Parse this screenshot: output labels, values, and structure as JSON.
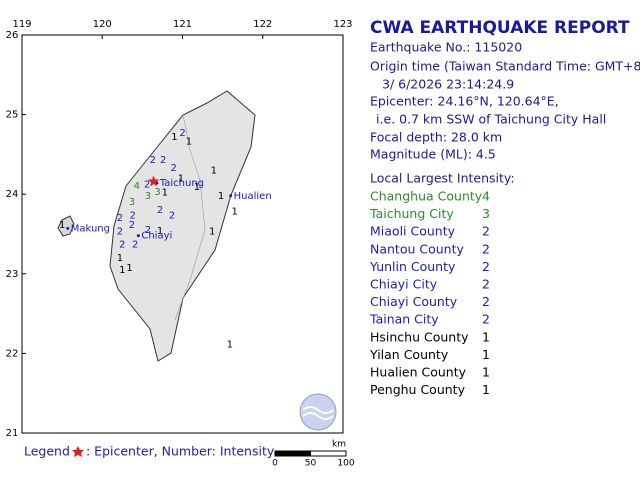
{
  "map": {
    "xlim": [
      119,
      123
    ],
    "ylim": [
      21,
      26
    ],
    "xticks": [
      119,
      120,
      121,
      122,
      123
    ],
    "yticks": [
      21,
      22,
      23,
      24,
      25,
      26
    ],
    "epicenter": {
      "lon": 120.64,
      "lat": 24.16
    },
    "places": [
      {
        "name": "Taichung",
        "lon": 120.68,
        "lat": 24.14
      },
      {
        "name": "Hualien",
        "lon": 121.6,
        "lat": 23.98
      },
      {
        "name": "Makung",
        "lon": 119.57,
        "lat": 23.57
      },
      {
        "name": "Chiayi",
        "lon": 120.45,
        "lat": 23.48
      }
    ],
    "intensity_colors": {
      "1": "#000000",
      "2": "#1c1cb4",
      "3": "#2e8b2e",
      "4": "#2e8b2e"
    },
    "stations": [
      {
        "lon": 121.0,
        "lat": 24.77,
        "intensity": 2
      },
      {
        "lon": 120.9,
        "lat": 24.72,
        "intensity": 1
      },
      {
        "lon": 121.08,
        "lat": 24.66,
        "intensity": 1
      },
      {
        "lon": 120.76,
        "lat": 24.43,
        "intensity": 2
      },
      {
        "lon": 120.63,
        "lat": 24.43,
        "intensity": 2
      },
      {
        "lon": 120.89,
        "lat": 24.33,
        "intensity": 2
      },
      {
        "lon": 120.98,
        "lat": 24.2,
        "intensity": 1
      },
      {
        "lon": 121.18,
        "lat": 24.09,
        "intensity": 1
      },
      {
        "lon": 121.39,
        "lat": 24.3,
        "intensity": 1
      },
      {
        "lon": 120.56,
        "lat": 24.12,
        "intensity": 2
      },
      {
        "lon": 120.43,
        "lat": 24.1,
        "intensity": 4
      },
      {
        "lon": 120.69,
        "lat": 24.03,
        "intensity": 3
      },
      {
        "lon": 120.57,
        "lat": 23.98,
        "intensity": 3
      },
      {
        "lon": 120.37,
        "lat": 23.9,
        "intensity": 3
      },
      {
        "lon": 120.78,
        "lat": 24.02,
        "intensity": 1
      },
      {
        "lon": 120.87,
        "lat": 23.73,
        "intensity": 2
      },
      {
        "lon": 120.72,
        "lat": 23.8,
        "intensity": 2
      },
      {
        "lon": 120.38,
        "lat": 23.73,
        "intensity": 2
      },
      {
        "lon": 120.22,
        "lat": 23.7,
        "intensity": 2
      },
      {
        "lon": 120.37,
        "lat": 23.61,
        "intensity": 2
      },
      {
        "lon": 120.22,
        "lat": 23.53,
        "intensity": 2
      },
      {
        "lon": 120.57,
        "lat": 23.55,
        "intensity": 2
      },
      {
        "lon": 120.72,
        "lat": 23.54,
        "intensity": 1
      },
      {
        "lon": 120.25,
        "lat": 23.37,
        "intensity": 2
      },
      {
        "lon": 120.41,
        "lat": 23.37,
        "intensity": 2
      },
      {
        "lon": 120.22,
        "lat": 23.2,
        "intensity": 1
      },
      {
        "lon": 120.25,
        "lat": 23.05,
        "intensity": 1
      },
      {
        "lon": 120.34,
        "lat": 23.07,
        "intensity": 1
      },
      {
        "lon": 121.48,
        "lat": 23.98,
        "intensity": 1
      },
      {
        "lon": 121.65,
        "lat": 23.78,
        "intensity": 1
      },
      {
        "lon": 121.37,
        "lat": 23.53,
        "intensity": 1
      },
      {
        "lon": 119.5,
        "lat": 23.61,
        "intensity": 1
      },
      {
        "lon": 121.59,
        "lat": 22.11,
        "intensity": 1
      }
    ],
    "scale_unit": "km",
    "scale_ticks": [
      0,
      50,
      100
    ]
  },
  "report": {
    "title": "CWA EARTHQUAKE REPORT",
    "lines": [
      "Earthquake No.: 115020",
      "Origin time (Taiwan Standard Time: GMT+8):",
      "3/ 6/2026 23:14:24.9",
      "Epicenter: 24.16°N, 120.64°E,",
      "i.e. 0.7 km SSW of Taichung City Hall",
      "Focal depth: 28.0 km",
      "Magnitude (ML): 4.5"
    ],
    "intensity_heading": "Local Largest Intensity:",
    "rows": [
      {
        "county": "Changhua County",
        "intensity": 4
      },
      {
        "county": "Taichung City",
        "intensity": 3
      },
      {
        "county": "Miaoli County",
        "intensity": 2
      },
      {
        "county": "Nantou County",
        "intensity": 2
      },
      {
        "county": "Yunlin County",
        "intensity": 2
      },
      {
        "county": "Chiayi City",
        "intensity": 2
      },
      {
        "county": "Chiayi County",
        "intensity": 2
      },
      {
        "county": "Tainan City",
        "intensity": 2
      },
      {
        "county": "Hsinchu County",
        "intensity": 1
      },
      {
        "county": "Yilan County",
        "intensity": 1
      },
      {
        "county": "Hualien County",
        "intensity": 1
      },
      {
        "county": "Penghu County",
        "intensity": 1
      }
    ]
  },
  "legend": {
    "label": "Legend",
    "text": ": Epicenter, Number: Intensity"
  }
}
